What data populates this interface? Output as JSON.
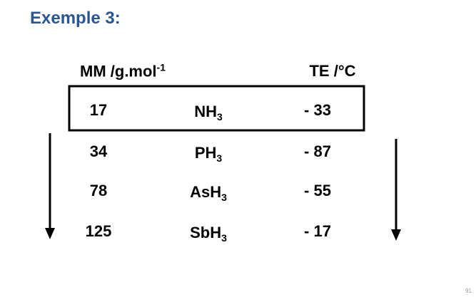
{
  "title": "Exemple 3:",
  "table": {
    "header": [
      {
        "text": "MM /g.mol",
        "sup": "-1"
      },
      {
        "text": "TE /°C"
      }
    ],
    "rows": [
      [
        "17",
        {
          "base": "NH",
          "sub": "3"
        },
        "- 33"
      ],
      [
        "34",
        {
          "base": "PH",
          "sub": "3"
        },
        "- 87"
      ],
      [
        "78",
        {
          "base": "AsH",
          "sub": "3"
        },
        "- 55"
      ],
      [
        "125",
        {
          "base": "SbH",
          "sub": "3"
        },
        "- 17"
      ]
    ]
  },
  "page_number": "91"
}
